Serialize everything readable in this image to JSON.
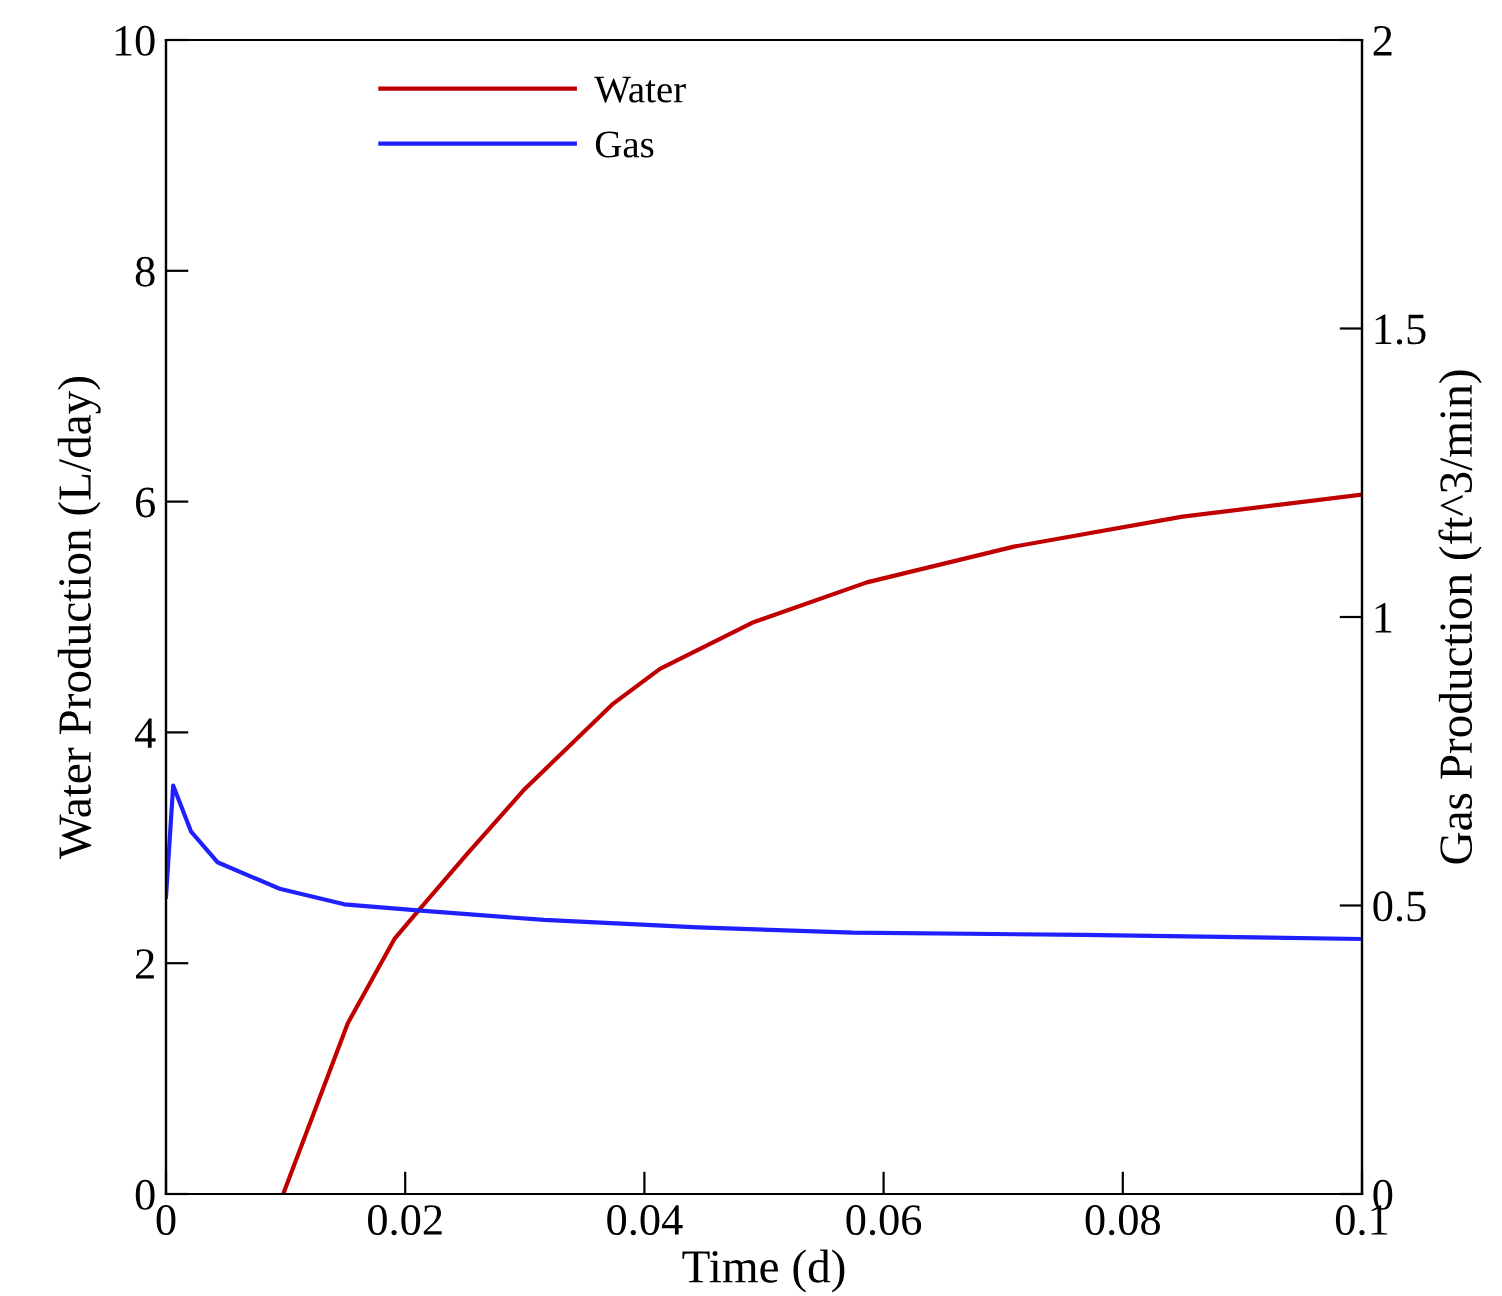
{
  "chart_data": {
    "type": "line",
    "xlabel": "Time (d)",
    "ylabel": "Water Production (L/day)",
    "y2label": "Gas Production (ft^3/min)",
    "xlim": [
      0,
      0.1
    ],
    "xticks": [
      0,
      0.02,
      0.04,
      0.06,
      0.08,
      0.1
    ],
    "ylim": [
      0,
      10
    ],
    "yticks": [
      0,
      2,
      4,
      6,
      8,
      10
    ],
    "y2lim": [
      0,
      2
    ],
    "y2ticks": [
      0,
      0.5,
      1,
      1.5,
      2
    ],
    "grid": false,
    "legend": "top left",
    "series": [
      {
        "name": "Water",
        "color": "#c00000",
        "x": [
          0.0098,
          0.0152,
          0.0191,
          0.0213,
          0.0252,
          0.03,
          0.0374,
          0.0413,
          0.049,
          0.0586,
          0.0709,
          0.085,
          0.1
        ],
        "values": [
          0,
          1.48,
          2.21,
          2.48,
          2.95,
          3.51,
          4.25,
          4.55,
          4.95,
          5.3,
          5.61,
          5.87,
          6.06
        ]
      },
      {
        "name": "Gas",
        "color": "#2020ff",
        "axis": "y2",
        "x": [
          0,
          0.0006,
          0.0021,
          0.0043,
          0.0095,
          0.0149,
          0.0213,
          0.0316,
          0.0445,
          0.0574,
          0.0767,
          0.1
        ],
        "values": [
          0.515,
          0.708,
          0.628,
          0.575,
          0.529,
          0.502,
          0.491,
          0.475,
          0.462,
          0.453,
          0.449,
          0.442
        ]
      }
    ]
  }
}
